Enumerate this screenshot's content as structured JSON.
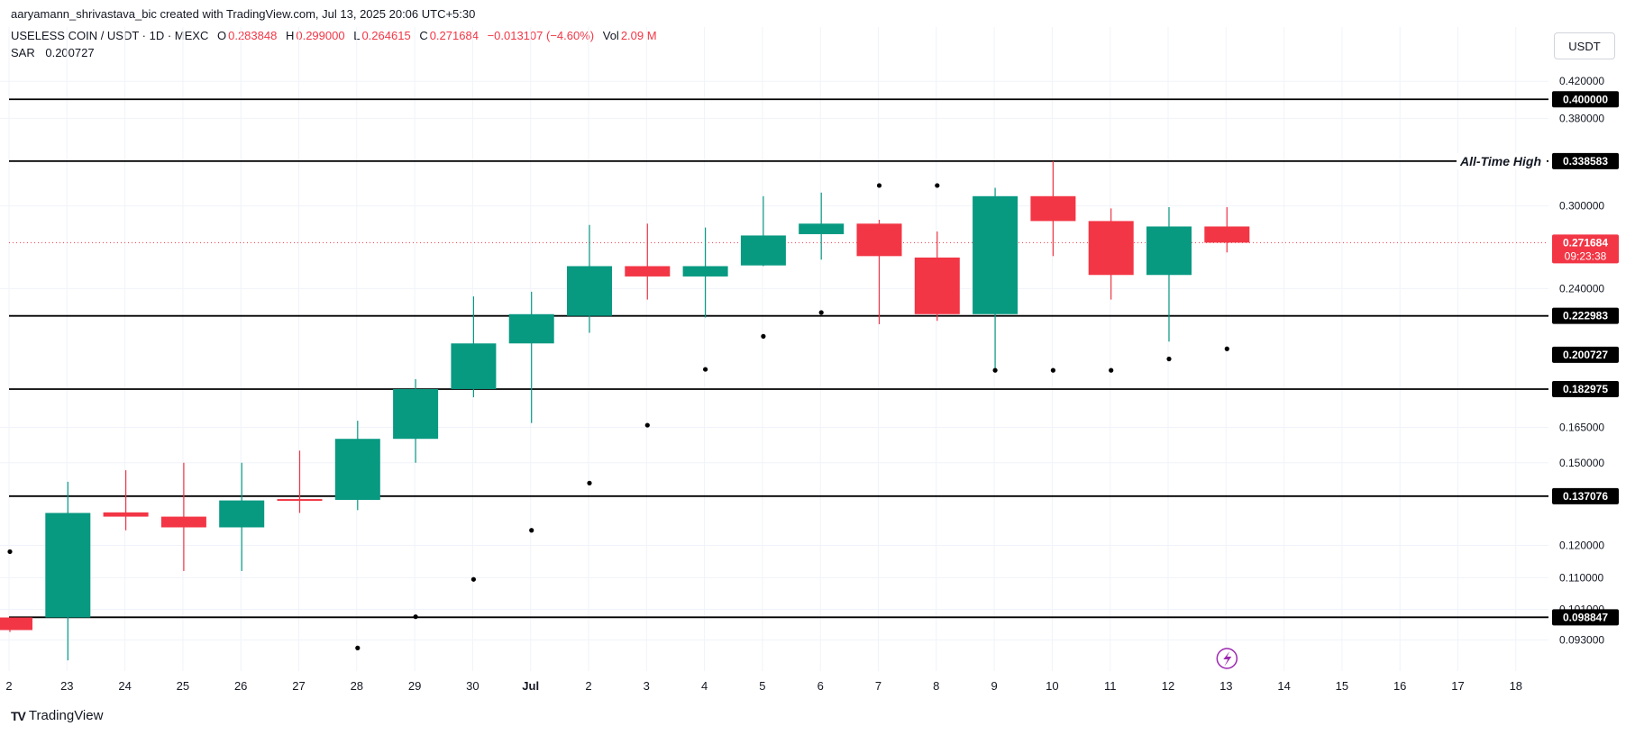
{
  "caption": "aaryamann_shrivastava_bic created with TradingView.com, Jul 13, 2025 20:06 UTC+5:30",
  "symbol": {
    "name": "USELESS COIN / USDT · 1D · MEXC",
    "o_label": "O",
    "o": "0.283848",
    "h_label": "H",
    "h": "0.299000",
    "l_label": "L",
    "l": "0.264615",
    "c_label": "C",
    "c": "0.271684",
    "change": "−0.013107 (−4.60%)",
    "vol_label": "Vol",
    "vol": "2.09 M"
  },
  "indicator": {
    "name": "SAR",
    "value": "0.200727"
  },
  "currency_button": "USDT",
  "footer_brand": "TradingView",
  "colors": {
    "up": "#089981",
    "down": "#f23645",
    "level": "#000000",
    "grid": "#f0f3fa",
    "price_line": "#f23645"
  },
  "chart_data": {
    "type": "candlestick",
    "y_axis": {
      "scale": "log",
      "range": [
        0.0855,
        0.452
      ],
      "ticks": [
        "0.420000",
        "0.380000",
        "0.300000",
        "0.240000",
        "0.165000",
        "0.150000",
        "0.120000",
        "0.110000",
        "0.101000",
        "0.093000"
      ]
    },
    "x_axis": {
      "ticks": [
        "2",
        "23",
        "24",
        "25",
        "26",
        "27",
        "28",
        "29",
        "30",
        "Jul",
        "2",
        "3",
        "4",
        "5",
        "6",
        "7",
        "8",
        "9",
        "10",
        "11",
        "12",
        "13",
        "14",
        "15",
        "16",
        "17",
        "18"
      ]
    },
    "candles": [
      {
        "x": "22",
        "o": 0.0988,
        "h": 0.0988,
        "l": 0.095,
        "c": 0.0955
      },
      {
        "x": "23",
        "o": 0.0988,
        "h": 0.1425,
        "l": 0.088,
        "c": 0.131
      },
      {
        "x": "24",
        "o": 0.1312,
        "h": 0.147,
        "l": 0.125,
        "c": 0.1297
      },
      {
        "x": "25",
        "o": 0.1297,
        "h": 0.15,
        "l": 0.112,
        "c": 0.126
      },
      {
        "x": "26",
        "o": 0.126,
        "h": 0.15,
        "l": 0.112,
        "c": 0.1355
      },
      {
        "x": "27",
        "o": 0.136,
        "h": 0.155,
        "l": 0.131,
        "c": 0.1357
      },
      {
        "x": "28",
        "o": 0.1357,
        "h": 0.168,
        "l": 0.132,
        "c": 0.16
      },
      {
        "x": "29",
        "o": 0.16,
        "h": 0.188,
        "l": 0.15,
        "c": 0.183
      },
      {
        "x": "30",
        "o": 0.183,
        "h": 0.235,
        "l": 0.179,
        "c": 0.207
      },
      {
        "x": "Jul 1",
        "o": 0.207,
        "h": 0.238,
        "l": 0.167,
        "c": 0.224
      },
      {
        "x": "2",
        "o": 0.223,
        "h": 0.285,
        "l": 0.213,
        "c": 0.255
      },
      {
        "x": "3",
        "o": 0.255,
        "h": 0.286,
        "l": 0.233,
        "c": 0.248
      },
      {
        "x": "4",
        "o": 0.248,
        "h": 0.283,
        "l": 0.222,
        "c": 0.255
      },
      {
        "x": "5",
        "o": 0.2555,
        "h": 0.308,
        "l": 0.255,
        "c": 0.277
      },
      {
        "x": "6",
        "o": 0.278,
        "h": 0.311,
        "l": 0.2595,
        "c": 0.286
      },
      {
        "x": "7",
        "o": 0.286,
        "h": 0.289,
        "l": 0.218,
        "c": 0.262
      },
      {
        "x": "8",
        "o": 0.261,
        "h": 0.28,
        "l": 0.22,
        "c": 0.224
      },
      {
        "x": "9",
        "o": 0.224,
        "h": 0.315,
        "l": 0.192,
        "c": 0.308
      },
      {
        "x": "10",
        "o": 0.308,
        "h": 0.3386,
        "l": 0.262,
        "c": 0.288
      },
      {
        "x": "11",
        "o": 0.288,
        "h": 0.298,
        "l": 0.233,
        "c": 0.249
      },
      {
        "x": "12",
        "o": 0.249,
        "h": 0.299,
        "l": 0.208,
        "c": 0.2838
      },
      {
        "x": "13",
        "o": 0.2838,
        "h": 0.299,
        "l": 0.2646,
        "c": 0.2717
      }
    ],
    "sar": [
      {
        "x": "22",
        "v": 0.118
      },
      {
        "x": "28",
        "v": 0.091
      },
      {
        "x": "29",
        "v": 0.099
      },
      {
        "x": "30",
        "v": 0.1095
      },
      {
        "x": "Jul 1",
        "v": 0.125
      },
      {
        "x": "2",
        "v": 0.142
      },
      {
        "x": "3",
        "v": 0.166
      },
      {
        "x": "4",
        "v": 0.193
      },
      {
        "x": "5",
        "v": 0.211
      },
      {
        "x": "6",
        "v": 0.225
      },
      {
        "x": "7",
        "v": 0.317
      },
      {
        "x": "8",
        "v": 0.317
      },
      {
        "x": "9",
        "v": 0.1925
      },
      {
        "x": "10",
        "v": 0.1925
      },
      {
        "x": "11",
        "v": 0.1925
      },
      {
        "x": "12",
        "v": 0.1985
      },
      {
        "x": "13",
        "v": 0.204
      }
    ],
    "levels": [
      {
        "value": 0.4,
        "label": "0.400000"
      },
      {
        "value": 0.338583,
        "label": "0.338583",
        "annotation": "All-Time High"
      },
      {
        "value": 0.222983,
        "label": "0.222983"
      },
      {
        "value": 0.182975,
        "label": "0.182975"
      },
      {
        "value": 0.137076,
        "label": "0.137076"
      },
      {
        "value": 0.098847,
        "label": "0.098847"
      }
    ],
    "sar_badge": "0.200727",
    "sar_badge_value": 0.200727,
    "last_price": {
      "value": 0.271684,
      "label": "0.271684",
      "countdown": "09:23:38"
    }
  }
}
